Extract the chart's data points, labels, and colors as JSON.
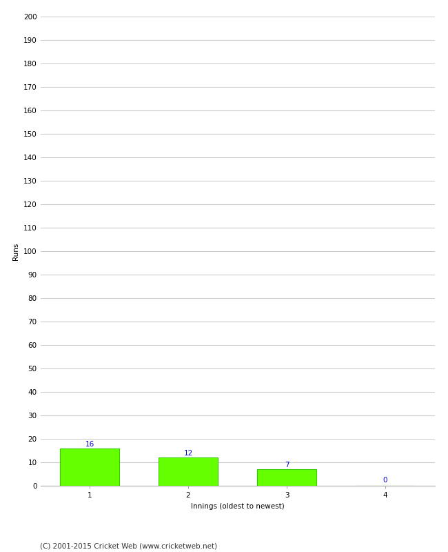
{
  "categories": [
    "1",
    "2",
    "3",
    "4"
  ],
  "values": [
    16,
    12,
    7,
    0
  ],
  "bar_color": "#66ff00",
  "bar_edge_color": "#33cc00",
  "xlabel": "Innings (oldest to newest)",
  "ylabel": "Runs",
  "ylim": [
    0,
    200
  ],
  "yticks": [
    0,
    10,
    20,
    30,
    40,
    50,
    60,
    70,
    80,
    90,
    100,
    110,
    120,
    130,
    140,
    150,
    160,
    170,
    180,
    190,
    200
  ],
  "annotation_color": "#0000cc",
  "annotation_fontsize": 7.5,
  "axis_label_fontsize": 7.5,
  "tick_fontsize": 7.5,
  "background_color": "#ffffff",
  "grid_color": "#cccccc",
  "footer_text": "(C) 2001-2015 Cricket Web (www.cricketweb.net)",
  "footer_fontsize": 7.5,
  "bar_width": 0.6
}
